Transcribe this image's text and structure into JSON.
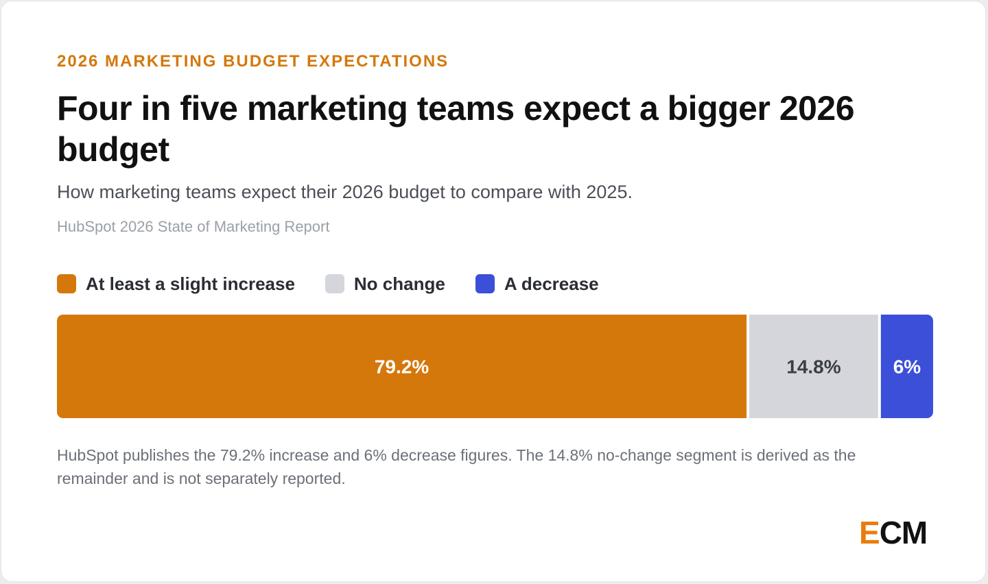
{
  "header": {
    "eyebrow": "2026 MARKETING BUDGET EXPECTATIONS",
    "title": "Four in five marketing teams expect a bigger 2026 budget",
    "subtitle": "How marketing teams expect their 2026 budget to compare with 2025.",
    "source": "HubSpot 2026 State of Marketing Report"
  },
  "legend": [
    {
      "label": "At least a slight increase",
      "color": "#d4780b"
    },
    {
      "label": "No change",
      "color": "#d4d6db"
    },
    {
      "label": "A decrease",
      "color": "#3b4fd8"
    }
  ],
  "chart_data": {
    "type": "bar",
    "orientation": "horizontal-stacked-100",
    "title": "Four in five marketing teams expect a bigger 2026 budget",
    "series": [
      {
        "name": "At least a slight increase",
        "value": 79.2,
        "label": "79.2%",
        "color": "#d4780b",
        "label_color": "#ffffff"
      },
      {
        "name": "No change",
        "value": 14.8,
        "label": "14.8%",
        "color": "#d4d6db",
        "label_color": "#3a3f47"
      },
      {
        "name": "A decrease",
        "value": 6,
        "label": "6%",
        "color": "#3b4fd8",
        "label_color": "#ffffff"
      }
    ],
    "legend_position": "top-left",
    "grid": false
  },
  "footnote": "HubSpot publishes the 79.2% increase and 6% decrease figures. The 14.8% no-change segment is derived as the remainder and is not separately reported.",
  "logo": {
    "first": "E",
    "rest": "CM"
  }
}
